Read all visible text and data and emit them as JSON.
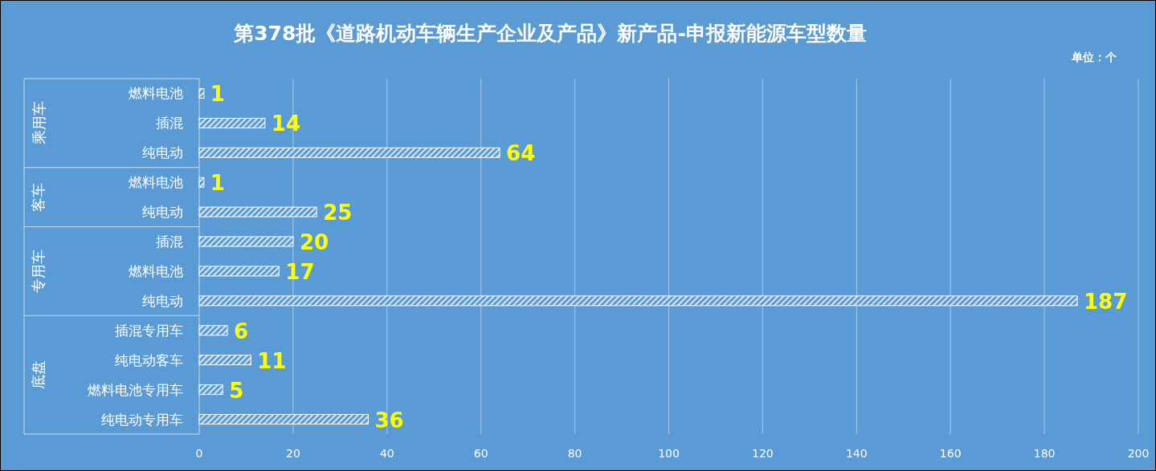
{
  "chart_data": {
    "type": "bar",
    "orientation": "horizontal",
    "title": "第378批《道路机动车辆生产企业及产品》新产品-申报新能源车型数量",
    "categories": [
      "燃料电池",
      "插混",
      "纯电动",
      "燃料电池",
      "纯电动",
      "插混",
      "燃料电池",
      "纯电动",
      "插混专用车",
      "纯电动客车",
      "燃料电池专用车",
      "纯电动专用车"
    ],
    "values": [
      1,
      14,
      64,
      1,
      25,
      20,
      17,
      187,
      6,
      11,
      5,
      36
    ],
    "color": "#ffffff",
    "data_labels": true,
    "grid": "x",
    "xlim": [
      0,
      200
    ],
    "xticks": [
      0,
      20,
      40,
      60,
      80,
      100,
      120,
      140,
      160,
      180,
      200
    ],
    "annotations": [
      "乘用车",
      "客车",
      "专用车",
      "底盘",
      "单位：个"
    ]
  }
}
